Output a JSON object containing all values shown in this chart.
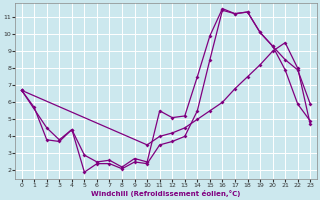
{
  "background_color": "#cce8ee",
  "line_color": "#800080",
  "grid_color": "#ffffff",
  "xlim": [
    -0.5,
    23.5
  ],
  "ylim": [
    1.5,
    11.8
  ],
  "xticks": [
    0,
    1,
    2,
    3,
    4,
    5,
    6,
    7,
    8,
    9,
    10,
    11,
    12,
    13,
    14,
    15,
    16,
    17,
    18,
    19,
    20,
    21,
    22,
    23
  ],
  "yticks": [
    2,
    3,
    4,
    5,
    6,
    7,
    8,
    9,
    10,
    11
  ],
  "xlabel": "Windchill (Refroidissement éolien,°C)",
  "curve1_x": [
    0,
    1,
    2,
    3,
    4,
    5,
    6,
    7,
    8,
    9,
    10,
    11,
    12,
    13,
    14,
    15,
    16,
    17,
    18,
    19,
    20,
    21,
    22,
    23
  ],
  "curve1_y": [
    6.7,
    5.7,
    3.8,
    3.7,
    4.4,
    2.9,
    2.5,
    2.6,
    2.2,
    2.7,
    2.5,
    5.5,
    5.1,
    5.2,
    7.5,
    9.9,
    11.5,
    11.2,
    11.3,
    10.1,
    9.3,
    7.9,
    5.9,
    4.9
  ],
  "curve2_x": [
    0,
    2,
    3,
    4,
    5,
    6,
    7,
    8,
    9,
    10,
    11,
    12,
    13,
    14,
    15,
    16,
    17,
    18,
    19,
    20,
    21,
    22,
    23
  ],
  "curve2_y": [
    6.7,
    4.5,
    3.8,
    4.4,
    1.9,
    2.4,
    2.4,
    2.1,
    2.5,
    2.4,
    3.5,
    3.7,
    4.0,
    5.5,
    8.5,
    11.4,
    11.2,
    11.3,
    10.1,
    9.3,
    8.5,
    7.9,
    5.9
  ],
  "curve3_x": [
    0,
    10,
    11,
    12,
    13,
    14,
    15,
    16,
    17,
    18,
    19,
    20,
    21,
    22,
    23
  ],
  "curve3_y": [
    6.7,
    3.5,
    4.0,
    4.2,
    4.5,
    5.0,
    5.5,
    6.0,
    6.8,
    7.5,
    8.2,
    9.0,
    9.5,
    8.0,
    4.7
  ]
}
